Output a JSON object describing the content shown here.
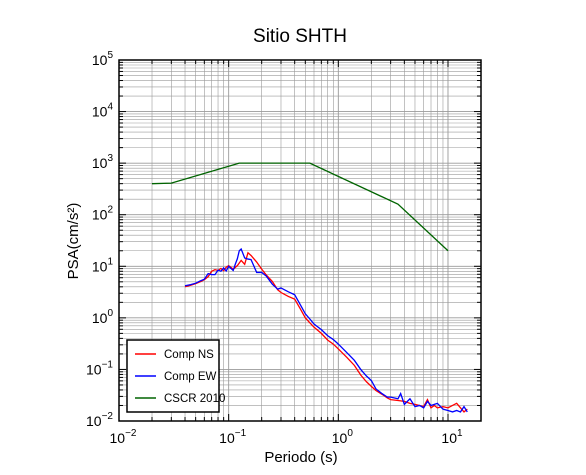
{
  "chart_data": {
    "type": "line",
    "title": "Sitio SHTH",
    "xlabel": "Periodo (s)",
    "ylabel": "PSA(cm/s²)",
    "x_scale": "log",
    "y_scale": "log",
    "xlim": [
      0.01,
      20
    ],
    "ylim": [
      0.01,
      100000
    ],
    "x_ticks": [
      {
        "base": "10",
        "exp": "−2",
        "value": 0.01
      },
      {
        "base": "10",
        "exp": "−1",
        "value": 0.1
      },
      {
        "base": "10",
        "exp": "0",
        "value": 1
      },
      {
        "base": "10",
        "exp": "1",
        "value": 10
      }
    ],
    "y_ticks": [
      {
        "base": "10",
        "exp": "−2",
        "value": 0.01
      },
      {
        "base": "10",
        "exp": "−1",
        "value": 0.1
      },
      {
        "base": "10",
        "exp": "0",
        "value": 1
      },
      {
        "base": "10",
        "exp": "1",
        "value": 10
      },
      {
        "base": "10",
        "exp": "2",
        "value": 100
      },
      {
        "base": "10",
        "exp": "3",
        "value": 1000
      },
      {
        "base": "10",
        "exp": "4",
        "value": 10000
      },
      {
        "base": "10",
        "exp": "5",
        "value": 100000
      }
    ],
    "grid": true,
    "legend_position": "bottom-left",
    "series": [
      {
        "name": "Comp NS",
        "color": "#ff0000",
        "x": [
          0.04,
          0.045,
          0.05,
          0.055,
          0.06,
          0.065,
          0.07,
          0.075,
          0.08,
          0.085,
          0.09,
          0.095,
          0.1,
          0.11,
          0.12,
          0.13,
          0.14,
          0.15,
          0.16,
          0.18,
          0.2,
          0.22,
          0.25,
          0.28,
          0.3,
          0.35,
          0.4,
          0.45,
          0.5,
          0.55,
          0.6,
          0.7,
          0.8,
          0.9,
          1.0,
          1.2,
          1.4,
          1.6,
          1.8,
          2.0,
          2.2,
          2.5,
          2.8,
          3.0,
          3.5,
          4.0,
          4.5,
          5.0,
          5.5,
          6.0,
          6.5,
          7.0,
          7.5,
          8.0,
          9.0,
          10.0,
          11.0,
          12.0,
          13.0,
          14.0,
          15.0
        ],
        "y": [
          4.0,
          4.3,
          4.6,
          5.0,
          5.5,
          6.3,
          8.0,
          8.6,
          8.3,
          9.1,
          8.2,
          9.6,
          10.3,
          8.8,
          10.3,
          13.0,
          10.9,
          18.3,
          16.2,
          12.1,
          8.8,
          6.8,
          5.1,
          3.5,
          3.1,
          2.6,
          2.3,
          1.5,
          1.0,
          0.8,
          0.66,
          0.5,
          0.37,
          0.31,
          0.25,
          0.17,
          0.12,
          0.078,
          0.058,
          0.047,
          0.039,
          0.033,
          0.028,
          0.026,
          0.025,
          0.024,
          0.022,
          0.021,
          0.02,
          0.019,
          0.026,
          0.018,
          0.02,
          0.018,
          0.019,
          0.018,
          0.02,
          0.022,
          0.018,
          0.015,
          0.017
        ]
      },
      {
        "name": "Comp EW",
        "color": "#0000ff",
        "x": [
          0.04,
          0.045,
          0.05,
          0.055,
          0.06,
          0.065,
          0.07,
          0.075,
          0.08,
          0.085,
          0.09,
          0.095,
          0.1,
          0.11,
          0.115,
          0.12,
          0.125,
          0.13,
          0.14,
          0.15,
          0.16,
          0.18,
          0.2,
          0.22,
          0.25,
          0.28,
          0.3,
          0.35,
          0.4,
          0.45,
          0.5,
          0.55,
          0.6,
          0.7,
          0.8,
          0.9,
          1.0,
          1.2,
          1.4,
          1.6,
          1.8,
          2.0,
          2.2,
          2.5,
          2.8,
          3.0,
          3.5,
          3.7,
          4.0,
          4.5,
          5.0,
          5.5,
          6.0,
          6.5,
          7.0,
          7.5,
          8.0,
          9.0,
          10.0,
          11.0,
          12.0,
          13.0,
          14.0,
          15.0
        ],
        "y": [
          4.2,
          4.4,
          4.7,
          5.2,
          5.6,
          7.2,
          6.9,
          6.9,
          8.4,
          8.0,
          9.3,
          8.1,
          10.0,
          8.3,
          11.0,
          14.0,
          20.0,
          21.6,
          14.5,
          13.8,
          13.5,
          7.6,
          7.6,
          6.5,
          4.5,
          3.6,
          3.8,
          3.2,
          2.8,
          1.8,
          1.2,
          0.95,
          0.76,
          0.59,
          0.45,
          0.38,
          0.31,
          0.21,
          0.15,
          0.1,
          0.075,
          0.061,
          0.042,
          0.034,
          0.029,
          0.029,
          0.027,
          0.034,
          0.021,
          0.027,
          0.019,
          0.02,
          0.018,
          0.024,
          0.02,
          0.021,
          0.022,
          0.017,
          0.016,
          0.015,
          0.016,
          0.015,
          0.019,
          0.015
        ]
      },
      {
        "name": "CSCR 2010",
        "color": "#006400",
        "x": [
          0.02,
          0.03,
          0.125,
          0.55,
          3.5,
          10.0
        ],
        "y": [
          400,
          410,
          1000,
          1000,
          160,
          20
        ]
      }
    ]
  }
}
